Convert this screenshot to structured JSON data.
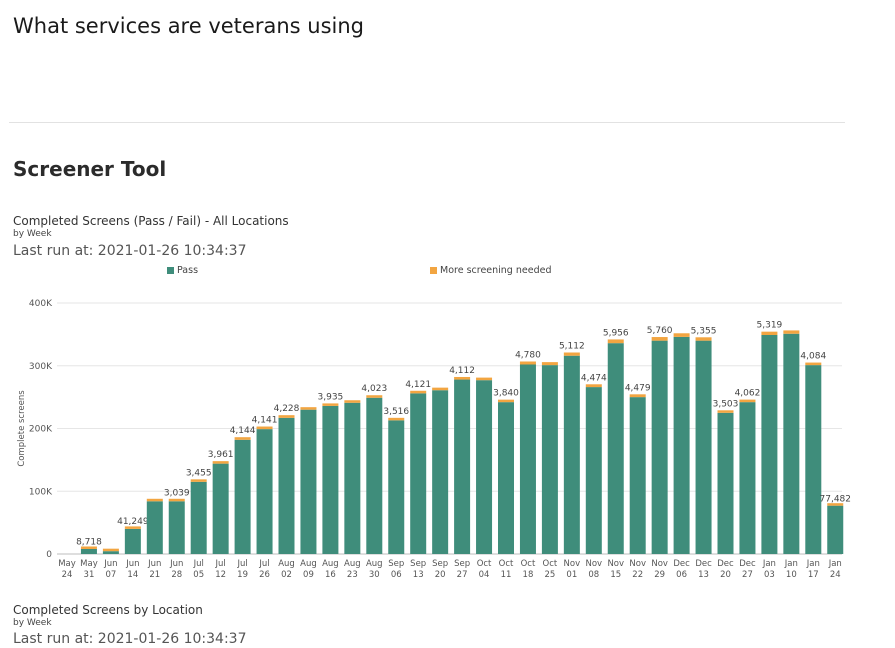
{
  "page": {
    "title": "What services are veterans using",
    "section_title": "Screener Tool"
  },
  "report1": {
    "title": "Completed Screens (Pass / Fail) - All Locations",
    "subtitle": "by Week",
    "last_run": "Last run at: 2021-01-26 10:34:37"
  },
  "report2": {
    "title": "Completed Screens by Location",
    "subtitle": "by Week",
    "last_run": "Last run at: 2021-01-26 10:34:37"
  },
  "colors": {
    "pass": "#3f8d7b",
    "more_screening": "#f2a541"
  },
  "chart_data": {
    "type": "bar",
    "stacked": true,
    "ylabel": "Complete screens",
    "ylim": [
      0,
      400000
    ],
    "yticks": [
      0,
      100000,
      200000,
      300000,
      400000
    ],
    "ytick_labels": [
      "0",
      "100K",
      "200K",
      "300K",
      "400K"
    ],
    "grid": true,
    "legend_position": "top",
    "categories": [
      [
        "May",
        "24"
      ],
      [
        "May",
        "31"
      ],
      [
        "Jun",
        "07"
      ],
      [
        "Jun",
        "14"
      ],
      [
        "Jun",
        "21"
      ],
      [
        "Jun",
        "28"
      ],
      [
        "Jul",
        "05"
      ],
      [
        "Jul",
        "12"
      ],
      [
        "Jul",
        "19"
      ],
      [
        "Jul",
        "26"
      ],
      [
        "Aug",
        "02"
      ],
      [
        "Aug",
        "09"
      ],
      [
        "Aug",
        "16"
      ],
      [
        "Aug",
        "23"
      ],
      [
        "Aug",
        "30"
      ],
      [
        "Sep",
        "06"
      ],
      [
        "Sep",
        "13"
      ],
      [
        "Sep",
        "20"
      ],
      [
        "Sep",
        "27"
      ],
      [
        "Oct",
        "04"
      ],
      [
        "Oct",
        "11"
      ],
      [
        "Oct",
        "18"
      ],
      [
        "Oct",
        "25"
      ],
      [
        "Nov",
        "01"
      ],
      [
        "Nov",
        "08"
      ],
      [
        "Nov",
        "15"
      ],
      [
        "Nov",
        "22"
      ],
      [
        "Nov",
        "29"
      ],
      [
        "Dec",
        "06"
      ],
      [
        "Dec",
        "13"
      ],
      [
        "Dec",
        "20"
      ],
      [
        "Dec",
        "27"
      ],
      [
        "Jan",
        "03"
      ],
      [
        "Jan",
        "10"
      ],
      [
        "Jan",
        "17"
      ],
      [
        "Jan",
        "24"
      ]
    ],
    "series": [
      {
        "name": "Pass",
        "values": [
          0,
          8000,
          4500,
          40000,
          84000,
          84000,
          115000,
          144000,
          182000,
          199000,
          217000,
          230000,
          236000,
          241000,
          249000,
          213000,
          256000,
          261000,
          278000,
          277000,
          242000,
          302000,
          301000,
          316000,
          266000,
          336000,
          250000,
          340000,
          346000,
          340000,
          225000,
          242000,
          349000,
          351000,
          301000,
          77000
        ]
      },
      {
        "name": "More screening needed",
        "values": [
          0,
          718,
          400,
          1249,
          3039,
          3039,
          3455,
          3961,
          4144,
          4141,
          4228,
          3935,
          3935,
          4023,
          4023,
          3516,
          4121,
          4121,
          4112,
          4112,
          3840,
          4780,
          4780,
          5112,
          4474,
          5956,
          4479,
          5760,
          5760,
          5355,
          3503,
          4062,
          5319,
          5319,
          4084,
          482
        ]
      }
    ],
    "data_labels": [
      "",
      "8,718",
      "",
      "41,249",
      "",
      "3,039",
      "3,455",
      "3,961",
      "4,144",
      "4,141",
      "4,228",
      "",
      "3,935",
      "",
      "4,023",
      "3,516",
      "4,121",
      "",
      "4,112",
      "",
      "3,840",
      "4,780",
      "",
      "5,112",
      "4,474",
      "5,956",
      "4,479",
      "5,760",
      "",
      "5,355",
      "3,503",
      "4,062",
      "5,319",
      "",
      "4,084",
      "77,482"
    ]
  }
}
